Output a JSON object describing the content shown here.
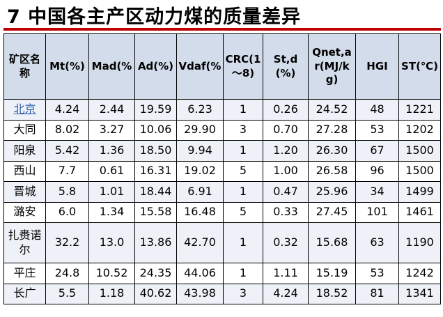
{
  "header": {
    "title": "7 中国各主产区动力煤的质量差异"
  },
  "table": {
    "columns": [
      "矿区名称",
      "Mt(%)",
      "Mad(%",
      "Ad(%)",
      "Vdaf(%",
      "CRC(1～8)",
      "St,d(%)",
      "Qnet,ar(MJ/kg)",
      "HGI",
      "ST(℃)"
    ],
    "rows": [
      [
        "北京",
        "4.24",
        "2.44",
        "19.59",
        "6.23",
        "1",
        "0.26",
        "24.52",
        "48",
        "1221"
      ],
      [
        "大同",
        "8.02",
        "3.27",
        "10.06",
        "29.90",
        "3",
        "0.70",
        "27.28",
        "53",
        "1202"
      ],
      [
        "阳泉",
        "5.42",
        "1.36",
        "18.50",
        "9.94",
        "1",
        "1.20",
        "26.30",
        "67",
        "1500"
      ],
      [
        "西山",
        "7.7",
        "0.61",
        "16.31",
        "19.02",
        "5",
        "1.00",
        "26.58",
        "96",
        "1500"
      ],
      [
        "晋城",
        "5.8",
        "1.01",
        "18.44",
        "6.91",
        "1",
        "0.47",
        "25.96",
        "34",
        "1499"
      ],
      [
        "潞安",
        "6.0",
        "1.34",
        "15.58",
        "16.48",
        "5",
        "0.33",
        "27.45",
        "101",
        "1461"
      ],
      [
        "扎赉诺尔",
        "32.2",
        "13.0",
        "13.86",
        "42.70",
        "1",
        "0.32",
        "15.68",
        "63",
        "1190"
      ],
      [
        "平庄",
        "24.8",
        "10.52",
        "24.35",
        "44.06",
        "1",
        "1.11",
        "15.19",
        "53",
        "1242"
      ],
      [
        "长广",
        "5.5",
        "1.18",
        "40.62",
        "43.98",
        "3",
        "4.24",
        "18.52",
        "81",
        "1341"
      ]
    ]
  }
}
